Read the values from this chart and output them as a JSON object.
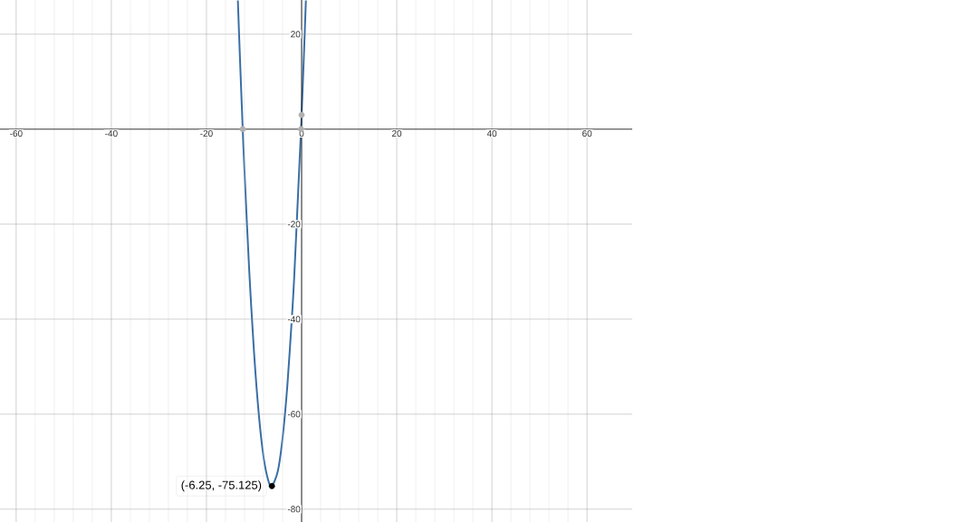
{
  "chart_data": {
    "type": "line",
    "xlim": [
      -63.4,
      69.5
    ],
    "ylim": [
      -82.7,
      27.2
    ],
    "xticks": [
      -60,
      -40,
      -20,
      0,
      20,
      40,
      60
    ],
    "yticks": [
      -80,
      -60,
      -40,
      -20,
      20
    ],
    "grid": true,
    "series": [
      {
        "color": "#3a6ea5",
        "marker": "none",
        "x": [
          -13.4,
          -13,
          -12.38,
          -12,
          -11,
          -10,
          -9,
          -8,
          -7,
          -6.25,
          -5,
          -4,
          -3,
          -2,
          -1.5,
          -0.12,
          0,
          0.5,
          0.9
        ],
        "values": [
          27.1,
          16,
          0,
          -9,
          -30,
          -47,
          -60,
          -69,
          -74,
          -75.125,
          -72,
          -65,
          -54,
          -39,
          -30,
          0,
          3,
          16,
          27.1
        ]
      },
      {
        "type": "scatter",
        "color": "#b0b0b0",
        "marker": "circle",
        "x": [
          -12.38,
          -0.12,
          0
        ],
        "values": [
          0,
          0,
          3
        ]
      },
      {
        "type": "scatter",
        "color": "#000000",
        "marker": "circle",
        "x": [
          -6.25
        ],
        "values": [
          -75.125
        ]
      }
    ],
    "annotations": [
      {
        "text": "(-6.25, -75.125)",
        "x": -6.25,
        "y": -75.125
      }
    ]
  }
}
